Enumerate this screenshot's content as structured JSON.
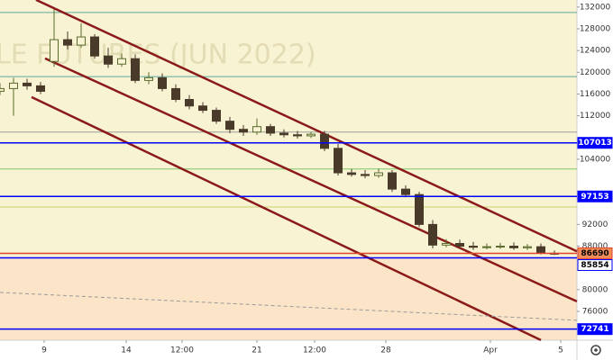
{
  "chart_data": {
    "type": "candlestick",
    "watermark": "LE FUTURES (JUN 2022)",
    "xlim": [
      0,
      128
    ],
    "ylim": [
      70700,
      133300
    ],
    "xticks": [
      {
        "value": 9.8,
        "label": "9"
      },
      {
        "value": 28,
        "label": "14"
      },
      {
        "value": 40.4,
        "label": "12:00"
      },
      {
        "value": 57,
        "label": "21"
      },
      {
        "value": 69.8,
        "label": "12:00"
      },
      {
        "value": 85.6,
        "label": "28"
      },
      {
        "value": 108.8,
        "label": "Apr"
      },
      {
        "value": 124.4,
        "label": "5"
      }
    ],
    "yticks": [
      132000,
      128000,
      124000,
      120000,
      116000,
      112000,
      104000,
      92000,
      88000,
      80000,
      76000
    ],
    "up_color": "#5b6b2e",
    "down_color": "#4a3a2a",
    "candles": {
      "x": [
        0,
        3,
        6,
        9,
        12,
        15,
        18,
        21,
        24,
        27,
        30,
        33,
        36,
        39,
        42,
        45,
        48,
        51,
        54,
        57,
        60,
        63,
        66,
        69,
        72,
        75,
        78,
        81,
        84,
        87,
        90,
        93,
        96,
        99,
        102,
        105,
        108,
        111,
        114,
        117,
        120,
        123
      ],
      "open": [
        116500,
        117000,
        118000,
        117500,
        122000,
        126000,
        125000,
        126500,
        123000,
        121500,
        122500,
        118500,
        119000,
        117000,
        115000,
        113800,
        113000,
        111000,
        109500,
        109000,
        110000,
        108800,
        108500,
        108300,
        108600,
        106000,
        101500,
        101200,
        101000,
        101500,
        98500,
        97500,
        92000,
        88200,
        88500,
        88000,
        87800,
        87900,
        88000,
        87700,
        87900,
        86700
      ],
      "high": [
        118000,
        119000,
        118800,
        118200,
        131600,
        127500,
        129000,
        127000,
        124500,
        123500,
        123300,
        120000,
        119800,
        117800,
        115800,
        114500,
        113500,
        111800,
        110300,
        111500,
        110500,
        109500,
        109200,
        109000,
        109200,
        106800,
        102200,
        102000,
        102300,
        102000,
        99200,
        98000,
        92800,
        89300,
        89200,
        88800,
        88500,
        88600,
        88700,
        88400,
        88500,
        87200
      ],
      "low": [
        115800,
        112000,
        116800,
        116000,
        121000,
        124200,
        124500,
        122500,
        120800,
        121000,
        118000,
        117800,
        116500,
        114500,
        113200,
        112500,
        110500,
        108800,
        108300,
        108500,
        108300,
        108000,
        107800,
        107900,
        105500,
        101000,
        100800,
        100500,
        100600,
        98000,
        97000,
        91500,
        87600,
        87800,
        87500,
        87300,
        87400,
        87500,
        87300,
        87300,
        86500,
        86400
      ],
      "close": [
        117000,
        118000,
        117500,
        116500,
        126000,
        125000,
        126500,
        123000,
        121500,
        122500,
        118500,
        119000,
        117000,
        115000,
        113800,
        113000,
        111000,
        109500,
        109000,
        110000,
        108800,
        108500,
        108300,
        108600,
        106000,
        101500,
        101200,
        101000,
        101500,
        98500,
        97500,
        92000,
        88200,
        88500,
        88000,
        87800,
        87900,
        88000,
        87700,
        87900,
        86700,
        86690
      ]
    },
    "price_levels": [
      {
        "value": 107013,
        "color": "#0000ff",
        "label_fill": "#0000ff",
        "label_text": "#ffffff"
      },
      {
        "value": 97153,
        "color": "#0000ff",
        "label_fill": "#0000ff",
        "label_text": "#ffffff"
      },
      {
        "value": 86690,
        "color": "#e0452b",
        "label_fill": "#f28c57",
        "label_text": "#000000"
      },
      {
        "value": 85854,
        "color": "#0000ff",
        "label_fill": "#ffffff",
        "label_text": "#000000"
      },
      {
        "value": 72741,
        "color": "#0000ff",
        "label_fill": "#0000ff",
        "label_text": "#ffffff"
      }
    ],
    "guide_lines": [
      {
        "value": 131000,
        "color": "#5fa8a0"
      },
      {
        "value": 119200,
        "color": "#5fa8a0"
      },
      {
        "value": 109000,
        "color": "#9aa09a"
      },
      {
        "value": 102200,
        "color": "#7cc86a"
      },
      {
        "value": 95200,
        "color": "#c8d070"
      }
    ],
    "trendlines": [
      {
        "x": [
          8,
          128
        ],
        "y": [
          133325,
          87050
        ],
        "color": "#8b1a1a"
      },
      {
        "x": [
          10,
          128
        ],
        "y": [
          122559,
          77837
        ],
        "color": "#8b1a1a"
      },
      {
        "x": [
          7,
          120
        ],
        "y": [
          115437,
          70716
        ],
        "color": "#8b1a1a"
      },
      {
        "x": [
          0,
          128
        ],
        "y": [
          79494,
          74360
        ],
        "color": "#9a9a9a",
        "dashed": true
      }
    ]
  }
}
